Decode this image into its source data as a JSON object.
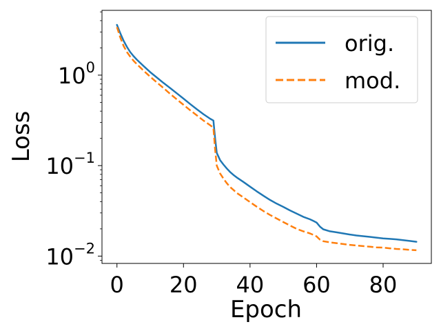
{
  "chart_data": {
    "type": "line",
    "title": "",
    "xlabel": "Epoch",
    "ylabel": "Loss",
    "xlim": [
      -4.5,
      94.5
    ],
    "ylim": [
      0.0083,
      5.2
    ],
    "yscale": "log",
    "grid": false,
    "legend_position": "top-right",
    "x_ticks": [
      {
        "value": 0,
        "label": "0"
      },
      {
        "value": 20,
        "label": "20"
      },
      {
        "value": 40,
        "label": "40"
      },
      {
        "value": 60,
        "label": "60"
      },
      {
        "value": 80,
        "label": "80"
      }
    ],
    "y_ticks": [
      {
        "value": 0.01,
        "base": "10",
        "exp": "−2"
      },
      {
        "value": 0.1,
        "base": "10",
        "exp": "−1"
      },
      {
        "value": 1,
        "base": "10",
        "exp": "0"
      }
    ],
    "series": [
      {
        "name": "orig.",
        "color": "#1f77b4",
        "dash": "solid",
        "x": [
          0,
          1,
          2,
          3,
          4,
          5,
          6,
          8,
          10,
          12,
          14,
          16,
          18,
          20,
          22,
          24,
          26,
          28,
          29,
          29.5,
          30,
          31,
          32,
          33,
          34,
          35,
          36,
          38,
          40,
          42,
          44,
          46,
          48,
          50,
          52,
          54,
          56,
          58,
          59,
          60,
          61,
          62,
          64,
          66,
          68,
          70,
          72,
          74,
          76,
          78,
          80,
          82,
          84,
          86,
          88,
          90
        ],
        "y": [
          3.6,
          2.9,
          2.4,
          2.05,
          1.8,
          1.62,
          1.48,
          1.26,
          1.08,
          0.94,
          0.82,
          0.72,
          0.63,
          0.55,
          0.48,
          0.42,
          0.37,
          0.33,
          0.315,
          0.2,
          0.138,
          0.115,
          0.103,
          0.093,
          0.085,
          0.079,
          0.074,
          0.066,
          0.0585,
          0.052,
          0.0465,
          0.0418,
          0.038,
          0.035,
          0.032,
          0.0295,
          0.0272,
          0.0255,
          0.0245,
          0.0235,
          0.0212,
          0.0198,
          0.0188,
          0.0183,
          0.0178,
          0.0173,
          0.0169,
          0.0166,
          0.0163,
          0.016,
          0.0157,
          0.0155,
          0.0153,
          0.015,
          0.0147,
          0.0144
        ]
      },
      {
        "name": "mod.",
        "color": "#ff7f0e",
        "dash": "dashed",
        "x": [
          0,
          1,
          2,
          3,
          4,
          5,
          6,
          8,
          10,
          12,
          14,
          16,
          18,
          20,
          22,
          24,
          26,
          28,
          29,
          29.5,
          30,
          31,
          32,
          33,
          34,
          35,
          36,
          38,
          40,
          42,
          44,
          46,
          48,
          50,
          52,
          54,
          56,
          58,
          59,
          60,
          61,
          62,
          64,
          66,
          68,
          70,
          72,
          74,
          76,
          78,
          80,
          82,
          84,
          86,
          88,
          90
        ],
        "y": [
          3.4,
          2.6,
          2.1,
          1.8,
          1.6,
          1.44,
          1.32,
          1.12,
          0.96,
          0.83,
          0.72,
          0.62,
          0.54,
          0.47,
          0.41,
          0.36,
          0.315,
          0.28,
          0.262,
          0.15,
          0.1,
          0.082,
          0.072,
          0.064,
          0.058,
          0.054,
          0.05,
          0.0445,
          0.0395,
          0.0352,
          0.0315,
          0.0285,
          0.026,
          0.0238,
          0.0218,
          0.02,
          0.0188,
          0.0178,
          0.0172,
          0.0165,
          0.0152,
          0.0146,
          0.0142,
          0.0139,
          0.0136,
          0.0133,
          0.0131,
          0.0129,
          0.0127,
          0.0125,
          0.0124,
          0.0122,
          0.012,
          0.0119,
          0.0117,
          0.0116
        ]
      }
    ]
  }
}
